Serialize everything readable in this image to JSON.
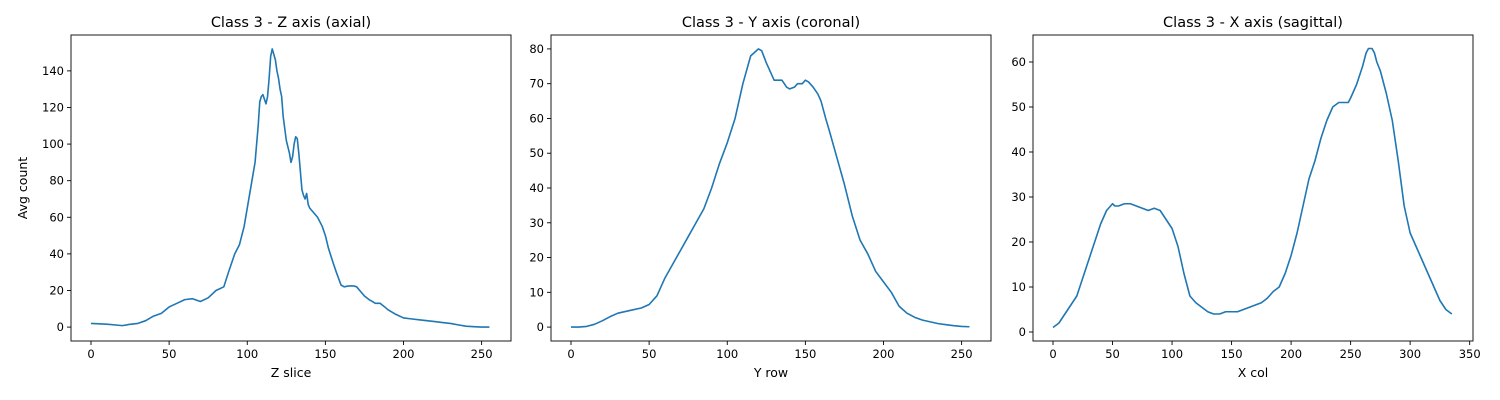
{
  "chart_data": [
    {
      "type": "line",
      "title": "Class 3 - Z axis (axial)",
      "xlabel": "Z slice",
      "ylabel": "Avg count",
      "xlim": [
        -12.8,
        268.8
      ],
      "ylim": [
        -7.6,
        159.6
      ],
      "xticks": [
        0,
        50,
        100,
        150,
        200,
        250
      ],
      "yticks": [
        0,
        20,
        40,
        60,
        80,
        100,
        120,
        140
      ],
      "grid": false,
      "line_color": "#1f77b4",
      "series": [
        {
          "x": [
            0,
            5,
            10,
            15,
            20,
            25,
            30,
            35,
            40,
            45,
            50,
            55,
            60,
            65,
            70,
            75,
            80,
            85,
            88,
            90,
            92,
            95,
            98,
            100,
            103,
            105,
            107,
            108,
            109,
            110,
            112,
            113,
            114,
            115,
            116,
            117,
            118,
            119,
            120,
            121,
            122,
            123,
            125,
            127,
            128,
            129,
            130,
            131,
            132,
            133,
            134,
            135,
            136,
            137,
            138,
            139,
            140,
            142,
            145,
            148,
            150,
            152,
            155,
            157,
            160,
            162,
            165,
            168,
            170,
            172,
            175,
            178,
            180,
            182,
            185,
            188,
            190,
            195,
            200,
            205,
            210,
            215,
            220,
            225,
            230,
            235,
            240,
            245,
            250,
            255
          ],
          "values": [
            2,
            1.8,
            1.6,
            1.2,
            0.8,
            1.5,
            2,
            3.5,
            6,
            7.5,
            11,
            13,
            15,
            15.5,
            14,
            16,
            20,
            22,
            30,
            35,
            40,
            45,
            55,
            65,
            80,
            90,
            110,
            123,
            126,
            127,
            122,
            126,
            136,
            148,
            152,
            149,
            146,
            140,
            136,
            130,
            126,
            115,
            102,
            95,
            90,
            93,
            100,
            104,
            103,
            95,
            85,
            75,
            72,
            70,
            73,
            67,
            65,
            63,
            60,
            55,
            50,
            43,
            35,
            30,
            23,
            22,
            22.5,
            22.5,
            22,
            20,
            17,
            15,
            14,
            13,
            13,
            11,
            9.5,
            7,
            5,
            4.5,
            4,
            3.5,
            3,
            2.5,
            2,
            1.2,
            0.5,
            0.2,
            0,
            0
          ]
        }
      ]
    },
    {
      "type": "line",
      "title": "Class 3 - Y axis (coronal)",
      "xlabel": "Y row",
      "ylabel": "",
      "xlim": [
        -12.8,
        268.8
      ],
      "ylim": [
        -4.0,
        84.0
      ],
      "xticks": [
        0,
        50,
        100,
        150,
        200,
        250
      ],
      "yticks": [
        0,
        10,
        20,
        30,
        40,
        50,
        60,
        70,
        80
      ],
      "grid": false,
      "line_color": "#1f77b4",
      "series": [
        {
          "x": [
            0,
            5,
            10,
            15,
            20,
            25,
            30,
            35,
            40,
            45,
            50,
            55,
            60,
            65,
            70,
            75,
            80,
            85,
            90,
            95,
            100,
            105,
            110,
            115,
            120,
            122,
            125,
            130,
            132,
            135,
            138,
            140,
            143,
            145,
            148,
            150,
            152,
            155,
            158,
            160,
            163,
            165,
            170,
            175,
            180,
            185,
            190,
            195,
            200,
            205,
            210,
            215,
            220,
            225,
            230,
            235,
            240,
            245,
            250,
            255
          ],
          "values": [
            0,
            0,
            0.2,
            0.8,
            1.8,
            3,
            4,
            4.5,
            5,
            5.5,
            6.5,
            9,
            14,
            18,
            22,
            26,
            30,
            34,
            40,
            47,
            53,
            60,
            70,
            78,
            80,
            79.5,
            76,
            71,
            71,
            71,
            69,
            68.5,
            69,
            70,
            70,
            71,
            70.5,
            69,
            67,
            65,
            60,
            57,
            49,
            41,
            32,
            25,
            21,
            16,
            13,
            10,
            6,
            4,
            2.8,
            2,
            1.5,
            1,
            0.7,
            0.4,
            0.2,
            0.1
          ]
        }
      ]
    },
    {
      "type": "line",
      "title": "Class 3 - X axis (sagittal)",
      "xlabel": "X col",
      "ylabel": "",
      "xlim": [
        -16.8,
        352.8
      ],
      "ylim": [
        -2.0,
        66.0
      ],
      "xticks": [
        0,
        50,
        100,
        150,
        200,
        250,
        300,
        350
      ],
      "yticks": [
        0,
        10,
        20,
        30,
        40,
        50,
        60
      ],
      "grid": false,
      "line_color": "#1f77b4",
      "series": [
        {
          "x": [
            0,
            5,
            10,
            15,
            20,
            25,
            30,
            35,
            40,
            45,
            50,
            52,
            55,
            60,
            65,
            70,
            75,
            80,
            85,
            90,
            95,
            100,
            105,
            110,
            115,
            120,
            125,
            130,
            135,
            140,
            145,
            150,
            155,
            160,
            165,
            170,
            175,
            180,
            185,
            190,
            195,
            200,
            205,
            210,
            215,
            220,
            225,
            230,
            235,
            240,
            243,
            245,
            248,
            250,
            255,
            260,
            263,
            265,
            268,
            270,
            272,
            275,
            280,
            285,
            290,
            295,
            300,
            305,
            310,
            315,
            320,
            325,
            330,
            335
          ],
          "values": [
            1,
            2,
            4,
            6,
            8,
            12,
            16,
            20,
            24,
            27,
            28.5,
            28,
            28,
            28.5,
            28.5,
            28,
            27.5,
            27,
            27.5,
            27,
            25,
            23,
            19,
            13,
            8,
            6.5,
            5.5,
            4.5,
            4,
            4,
            4.5,
            4.5,
            4.5,
            5,
            5.5,
            6,
            6.5,
            7.5,
            9,
            10,
            13,
            17,
            22,
            28,
            34,
            38,
            43,
            47,
            50,
            51,
            51,
            51,
            51,
            52,
            55,
            59,
            62,
            63,
            63,
            62,
            60,
            58,
            53,
            47,
            38,
            28,
            22,
            19,
            16,
            13,
            10,
            7,
            5,
            4
          ]
        }
      ]
    }
  ]
}
